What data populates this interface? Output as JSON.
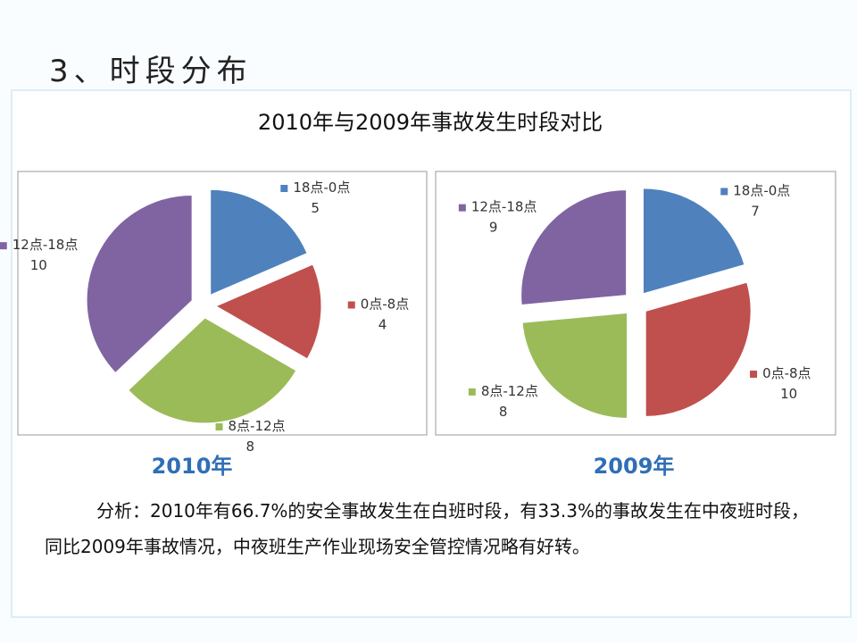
{
  "heading": "3、时段分布",
  "title": "2010年与2009年事故发生时段对比",
  "chart_data": [
    {
      "type": "pie",
      "title": "2010年",
      "categories": [
        "18点-0点",
        "0点-8点",
        "8点-12点",
        "12点-18点"
      ],
      "values": [
        5,
        4,
        8,
        10
      ],
      "colors": [
        "#4f81bd",
        "#c0504d",
        "#9bbb59",
        "#8064a2"
      ]
    },
    {
      "type": "pie",
      "title": "2009年",
      "categories": [
        "18点-0点",
        "0点-8点",
        "8点-12点",
        "12点-18点"
      ],
      "values": [
        7,
        10,
        8,
        9
      ],
      "colors": [
        "#4f81bd",
        "#c0504d",
        "#9bbb59",
        "#8064a2"
      ]
    }
  ],
  "analysis": "分析：2010年有66.7%的安全事故发生在白班时段，有33.3%的事故发生在中夜班时段，同比2009年事故情况，中夜班生产作业现场安全管控情况略有好转。"
}
